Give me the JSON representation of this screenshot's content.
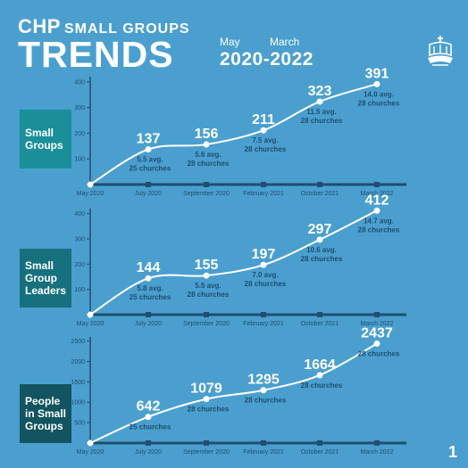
{
  "header": {
    "brand": "CHP",
    "brand_sub": "SMALL GROUPS",
    "title": "TRENDS",
    "range_start_label": "May",
    "range_end_label": "March",
    "range_years": "2020-2022"
  },
  "logo_icon": "church-logo-icon",
  "page_number": "1",
  "colors": {
    "background": "#4a9fcf",
    "axis": "#1f4e6e",
    "line": "#ffffff",
    "label_box_1": "#1a8f9a",
    "label_box_2": "#17707e",
    "label_box_3": "#12545f"
  },
  "chart_data": [
    {
      "type": "line",
      "label": "Small Groups",
      "categories": [
        "May 2020",
        "July 2020",
        "September 2020",
        "February 2021",
        "October 2021",
        "March 2022"
      ],
      "values": [
        0,
        137,
        156,
        211,
        323,
        391
      ],
      "value_labels": [
        "",
        "137",
        "156",
        "211",
        "323",
        "391"
      ],
      "notes": [
        [],
        [
          "5.5 avg.",
          "25 churches"
        ],
        [
          "5.6 avg.",
          "28 churches"
        ],
        [
          "7.5 avg.",
          "28 churches"
        ],
        [
          "11.5 avg.",
          "28 churches"
        ],
        [
          "14.0 avg.",
          "28 churches"
        ]
      ],
      "yticks": [
        100,
        200,
        300,
        400
      ],
      "ylim": [
        0,
        420
      ]
    },
    {
      "type": "line",
      "label": "Small Group Leaders",
      "categories": [
        "May 2020",
        "July 2020",
        "September 2020",
        "February 2021",
        "October 2021",
        "March 2022"
      ],
      "values": [
        0,
        144,
        155,
        197,
        297,
        412
      ],
      "value_labels": [
        "",
        "144",
        "155",
        "197",
        "297",
        "412"
      ],
      "notes": [
        [],
        [
          "5.8 avg.",
          "25 churches"
        ],
        [
          "5.5 avg.",
          "28 churches"
        ],
        [
          "7.0 avg.",
          "28 churches"
        ],
        [
          "10.6 avg.",
          "28 churches"
        ],
        [
          "14.7 avg.",
          "28 churches"
        ]
      ],
      "yticks": [
        100,
        200,
        300,
        400
      ],
      "ylim": [
        0,
        420
      ]
    },
    {
      "type": "line",
      "label": "People in Small Groups",
      "categories": [
        "May 2020",
        "July 2020",
        "September 2020",
        "February 2021",
        "October 2021",
        "March 2022"
      ],
      "values": [
        0,
        642,
        1079,
        1295,
        1664,
        2437
      ],
      "value_labels": [
        "",
        "642",
        "1079",
        "1295",
        "1664",
        "2437"
      ],
      "notes": [
        [],
        [
          "25 churches"
        ],
        [
          "28 churches"
        ],
        [
          "28 churches"
        ],
        [
          "28 churches"
        ],
        [
          "28 churches"
        ]
      ],
      "yticks": [
        500,
        1000,
        1500,
        2000,
        2500
      ],
      "ylim": [
        0,
        2600
      ]
    }
  ]
}
